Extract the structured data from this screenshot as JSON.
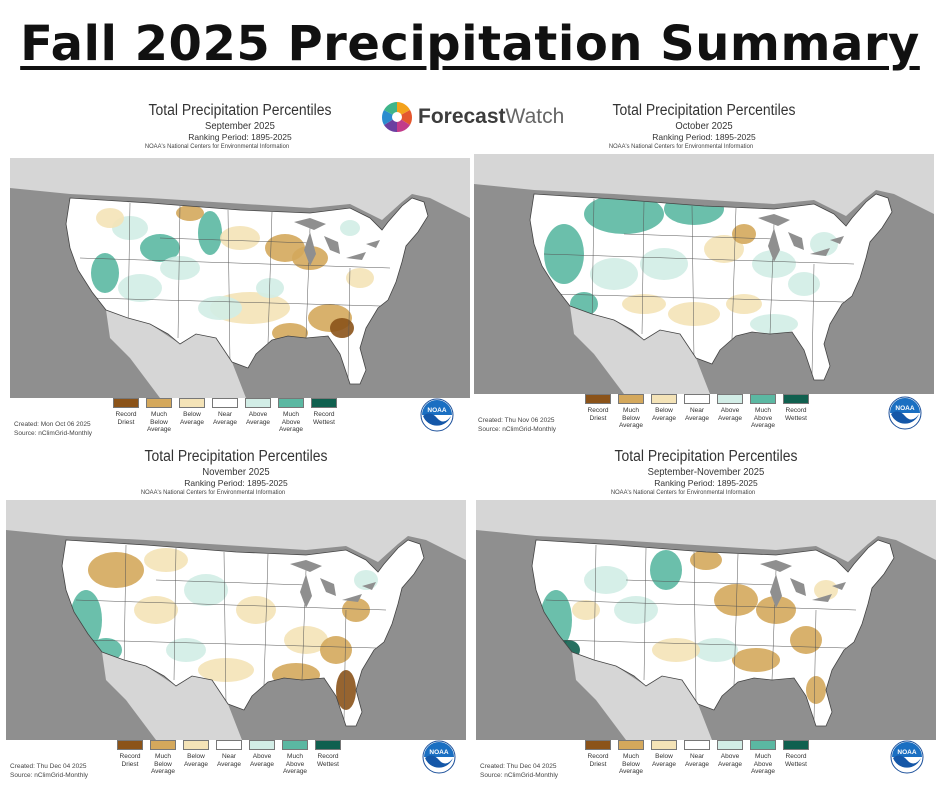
{
  "page_title": "Fall 2025 Precipitation Summary",
  "brand": {
    "part1": "Forecast",
    "part2": "Watch"
  },
  "legend": [
    {
      "label": "Record Driest",
      "color": "#8b5319"
    },
    {
      "label": "Much Below Average",
      "color": "#d4a85c"
    },
    {
      "label": "Below Average",
      "color": "#f4e3b7"
    },
    {
      "label": "Near Average",
      "color": "#ffffff"
    },
    {
      "label": "Above Average",
      "color": "#d2ede6"
    },
    {
      "label": "Much Above Average",
      "color": "#5bb8a2"
    },
    {
      "label": "Record Wettest",
      "color": "#10604f"
    }
  ],
  "colors": {
    "land": "#ffffff",
    "water": "#8f8f8f",
    "canada": "#d6d6d6",
    "noaa_blue": "#1a6fc2"
  },
  "noaa_label": "NOAA",
  "panels": [
    {
      "title": "Total Precipitation Percentiles",
      "period": "September 2025",
      "ranking": "Ranking Period: 1895-2025",
      "source_org": "NOAA's National Centers for Environmental Information",
      "created": "Created: Mon Oct 06 2025",
      "source": "Source: nClimGrid-Monthly"
    },
    {
      "title": "Total Precipitation Percentiles",
      "period": "October 2025",
      "ranking": "Ranking Period: 1895-2025",
      "source_org": "NOAA's National Centers for Environmental Information",
      "created": "Created: Thu Nov 06 2025",
      "source": "Source: nClimGrid-Monthly"
    },
    {
      "title": "Total Precipitation Percentiles",
      "period": "November 2025",
      "ranking": "Ranking Period: 1895-2025",
      "source_org": "NOAA's National Centers for Environmental Information",
      "created": "Created: Thu Dec 04 2025",
      "source": "Source: nClimGrid-Monthly"
    },
    {
      "title": "Total Precipitation Percentiles",
      "period": "September-November 2025",
      "ranking": "Ranking Period: 1895-2025",
      "source_org": "NOAA's National Centers for Environmental Information",
      "created": "Created: Thu Dec 04 2025",
      "source": "Source: nClimGrid-Monthly"
    }
  ]
}
